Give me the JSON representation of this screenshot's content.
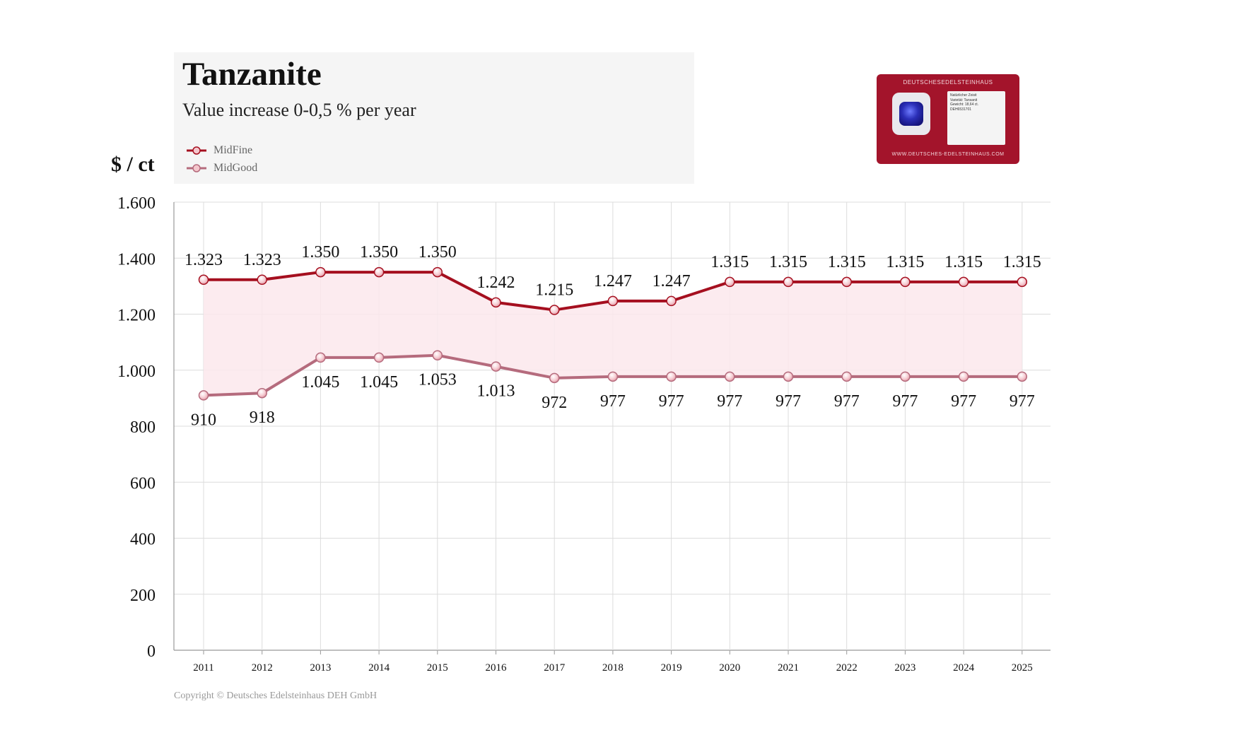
{
  "header": {
    "title": "Tanzanite",
    "subtitle": "Value increase 0-0,5 % per year"
  },
  "legend": [
    {
      "name": "MidFine",
      "color": "#a50f1f"
    },
    {
      "name": "MidGood",
      "color": "#b56b7d"
    }
  ],
  "footer": {
    "copyright": "Copyright © Deutsches Edelsteinhaus DEH GmbH"
  },
  "certificate_card": {
    "brand": "DEUTSCHESEDELSTEINHAUS",
    "url": "WWW.DEUTSCHES-EDELSTEINHAUS.COM",
    "lines": [
      "Natürlicher Zoisit",
      "Varietät: Tansanit",
      "Gewicht: 18,64 ct.",
      "DEH6531701"
    ]
  },
  "chart_data": {
    "type": "line",
    "ylabel": "$ / ct",
    "ylim": [
      0,
      1600
    ],
    "yticks": [
      0,
      200,
      400,
      600,
      800,
      1000,
      1200,
      1400,
      1600
    ],
    "ytick_labels": [
      "0",
      "200",
      "400",
      "600",
      "800",
      "1.000",
      "1.200",
      "1.400",
      "1.600"
    ],
    "categories": [
      "2011",
      "2012",
      "2013",
      "2014",
      "2015",
      "2016",
      "2017",
      "2018",
      "2019",
      "2020",
      "2021",
      "2022",
      "2023",
      "2024",
      "2025"
    ],
    "series": [
      {
        "name": "MidFine",
        "color": "#a50f1f",
        "values": [
          1323,
          1323,
          1350,
          1350,
          1350,
          1242,
          1215,
          1247,
          1247,
          1315,
          1315,
          1315,
          1315,
          1315,
          1315
        ],
        "labels": [
          "1.323",
          "1.323",
          "1.350",
          "1.350",
          "1.350",
          "1.242",
          "1.215",
          "1.247",
          "1.247",
          "1.315",
          "1.315",
          "1.315",
          "1.315",
          "1.315",
          "1.315"
        ]
      },
      {
        "name": "MidGood",
        "color": "#b56b7d",
        "values": [
          910,
          918,
          1045,
          1045,
          1053,
          1013,
          972,
          977,
          977,
          977,
          977,
          977,
          977,
          977,
          977
        ],
        "labels": [
          "910",
          "918",
          "1.045",
          "1.045",
          "1.053",
          "1.013",
          "972",
          "977",
          "977",
          "977",
          "977",
          "977",
          "977",
          "977",
          "977"
        ]
      }
    ],
    "band_fill": "#fbe8ec",
    "grid": true
  }
}
